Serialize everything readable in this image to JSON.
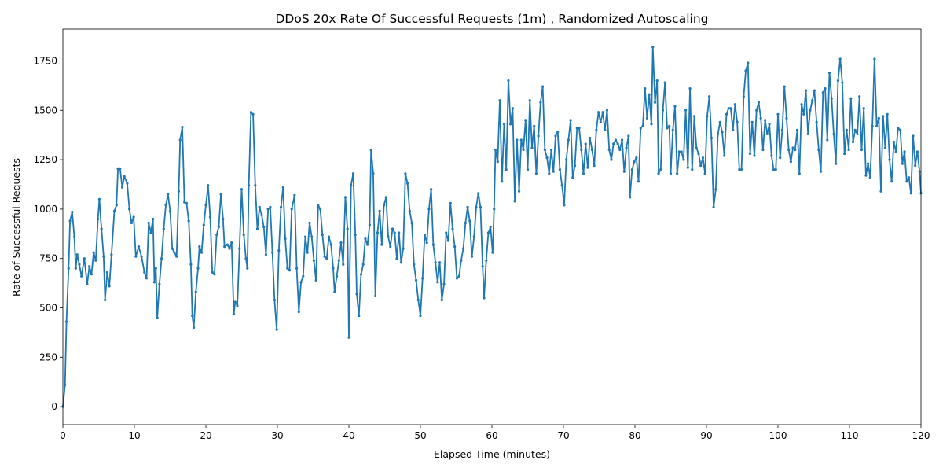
{
  "chart_data": {
    "type": "line",
    "title": "DDoS 20x Rate Of Successful Requests (1m) , Randomized Autoscaling",
    "x_label": "Elapsed Time (minutes)",
    "y_label": "Rate of Successful Requests",
    "xlim": [
      0,
      120
    ],
    "ylim": [
      -91,
      1911
    ],
    "xticks": [
      0,
      10,
      20,
      30,
      40,
      50,
      60,
      70,
      80,
      90,
      100,
      110,
      120
    ],
    "yticks": [
      0,
      250,
      500,
      750,
      1000,
      1250,
      1500,
      1750
    ],
    "grid": false,
    "x": [
      0,
      0.3,
      0.5,
      0.8,
      1.0,
      1.3,
      1.6,
      1.8,
      2.0,
      2.3,
      2.6,
      3.0,
      3.4,
      3.7,
      4.0,
      4.3,
      4.6,
      4.9,
      5.1,
      5.4,
      5.7,
      5.9,
      6.2,
      6.5,
      6.8,
      7.2,
      7.5,
      7.7,
      8.0,
      8.3,
      8.6,
      9.0,
      9.3,
      9.6,
      9.9,
      10.2,
      10.6,
      11.0,
      11.4,
      11.7,
      12.0,
      12.3,
      12.6,
      12.8,
      13.0,
      13.2,
      13.5,
      13.8,
      14.1,
      14.4,
      14.7,
      15.0,
      15.3,
      15.6,
      15.9,
      16.2,
      16.4,
      16.7,
      17.0,
      17.3,
      17.6,
      17.9,
      18.1,
      18.3,
      18.6,
      18.9,
      19.1,
      19.4,
      19.7,
      20.0,
      20.3,
      20.6,
      20.9,
      21.2,
      21.5,
      21.8,
      22.1,
      22.4,
      22.6,
      23.0,
      23.3,
      23.6,
      23.9,
      24.1,
      24.4,
      24.7,
      25.0,
      25.3,
      25.6,
      25.8,
      26.0,
      26.3,
      26.6,
      26.9,
      27.2,
      27.5,
      27.8,
      28.1,
      28.4,
      28.7,
      29.0,
      29.3,
      29.6,
      29.9,
      30.2,
      30.5,
      30.8,
      31.1,
      31.4,
      31.7,
      32.0,
      32.4,
      32.7,
      33.0,
      33.3,
      33.6,
      33.9,
      34.2,
      34.5,
      34.8,
      35.1,
      35.4,
      35.7,
      36.0,
      36.3,
      36.6,
      36.9,
      37.2,
      37.5,
      37.8,
      38.0,
      38.3,
      38.6,
      38.9,
      39.2,
      39.5,
      39.8,
      40.0,
      40.3,
      40.6,
      40.9,
      41.1,
      41.4,
      41.7,
      42.0,
      42.3,
      42.6,
      42.9,
      43.1,
      43.4,
      43.7,
      44.0,
      44.3,
      44.6,
      44.9,
      45.2,
      45.5,
      45.8,
      46.1,
      46.4,
      46.7,
      47.0,
      47.3,
      47.6,
      47.9,
      48.2,
      48.5,
      48.8,
      49.1,
      49.4,
      49.7,
      50.0,
      50.3,
      50.6,
      50.9,
      51.2,
      51.5,
      51.8,
      52.1,
      52.4,
      52.7,
      53.0,
      53.3,
      53.6,
      53.9,
      54.2,
      54.5,
      54.8,
      55.1,
      55.4,
      55.7,
      56.0,
      56.3,
      56.6,
      56.9,
      57.2,
      57.5,
      57.8,
      58.1,
      58.4,
      58.7,
      58.9,
      59.2,
      59.5,
      59.8,
      60.1,
      60.3,
      60.5,
      60.8,
      61.1,
      61.4,
      61.7,
      62.0,
      62.3,
      62.6,
      62.9,
      63.2,
      63.5,
      63.8,
      64.1,
      64.4,
      64.7,
      65.0,
      65.3,
      65.6,
      65.9,
      66.2,
      66.5,
      66.8,
      67.1,
      67.4,
      67.7,
      68.0,
      68.3,
      68.6,
      68.9,
      69.2,
      69.5,
      69.8,
      70.1,
      70.4,
      70.7,
      71.0,
      71.3,
      71.6,
      71.9,
      72.2,
      72.5,
      72.8,
      73.1,
      73.4,
      73.7,
      74.0,
      74.3,
      74.6,
      74.9,
      75.2,
      75.5,
      75.8,
      76.1,
      76.4,
      76.7,
      77.0,
      77.3,
      77.6,
      77.9,
      78.2,
      78.5,
      78.8,
      79.1,
      79.3,
      79.6,
      79.9,
      80.2,
      80.5,
      80.8,
      81.1,
      81.4,
      81.7,
      82.0,
      82.3,
      82.5,
      82.8,
      83.1,
      83.3,
      83.6,
      83.9,
      84.2,
      84.5,
      84.8,
      85.0,
      85.3,
      85.6,
      85.9,
      86.2,
      86.5,
      86.8,
      87.1,
      87.4,
      87.7,
      88.0,
      88.3,
      88.6,
      88.9,
      89.2,
      89.5,
      89.8,
      90.1,
      90.4,
      90.7,
      91.0,
      91.3,
      91.6,
      91.9,
      92.2,
      92.5,
      92.8,
      93.1,
      93.4,
      93.7,
      94.0,
      94.3,
      94.6,
      94.9,
      95.2,
      95.5,
      95.8,
      96.1,
      96.4,
      96.7,
      97.0,
      97.3,
      97.6,
      97.9,
      98.2,
      98.5,
      98.8,
      99.1,
      99.4,
      99.7,
      100.0,
      100.3,
      100.6,
      100.9,
      101.2,
      101.5,
      101.8,
      102.1,
      102.4,
      102.7,
      103.0,
      103.3,
      103.6,
      103.9,
      104.2,
      104.5,
      104.8,
      105.1,
      105.4,
      105.7,
      106.0,
      106.3,
      106.6,
      106.9,
      107.2,
      107.5,
      107.8,
      108.1,
      108.4,
      108.7,
      109.0,
      109.3,
      109.6,
      109.9,
      110.2,
      110.5,
      110.8,
      111.1,
      111.4,
      111.7,
      112.0,
      112.3,
      112.6,
      112.9,
      113.2,
      113.5,
      113.8,
      114.1,
      114.4,
      114.7,
      115.0,
      115.3,
      115.6,
      115.9,
      116.2,
      116.5,
      116.8,
      117.1,
      117.4,
      117.7,
      118.0,
      118.3,
      118.6,
      118.9,
      119.2,
      119.5,
      119.8,
      120
    ],
    "series": [
      {
        "color": "#1f77b4",
        "values": [
          0,
          110,
          430,
          700,
          940,
          985,
          860,
          700,
          770,
          720,
          660,
          750,
          620,
          710,
          670,
          780,
          740,
          950,
          1050,
          900,
          760,
          540,
          680,
          610,
          770,
          990,
          1020,
          1205,
          1205,
          1110,
          1165,
          1130,
          1000,
          930,
          960,
          760,
          810,
          760,
          680,
          650,
          930,
          880,
          950,
          630,
          700,
          450,
          620,
          750,
          900,
          1020,
          1075,
          990,
          800,
          780,
          760,
          1090,
          1350,
          1415,
          1035,
          1030,
          940,
          720,
          460,
          400,
          580,
          700,
          810,
          780,
          920,
          1020,
          1120,
          960,
          680,
          670,
          870,
          910,
          1075,
          950,
          810,
          820,
          800,
          830,
          470,
          530,
          510,
          800,
          1100,
          870,
          750,
          700,
          1120,
          1490,
          1480,
          1120,
          900,
          1010,
          970,
          910,
          770,
          1000,
          1010,
          780,
          540,
          390,
          790,
          1010,
          1110,
          850,
          700,
          690,
          1000,
          1070,
          700,
          480,
          630,
          660,
          860,
          780,
          930,
          860,
          740,
          640,
          1020,
          1000,
          870,
          760,
          750,
          860,
          820,
          700,
          580,
          660,
          740,
          830,
          720,
          1060,
          900,
          350,
          1120,
          1180,
          870,
          570,
          460,
          670,
          720,
          850,
          820,
          920,
          1300,
          1180,
          560,
          880,
          990,
          820,
          1020,
          1060,
          860,
          810,
          900,
          880,
          750,
          880,
          730,
          800,
          1180,
          1130,
          990,
          930,
          720,
          640,
          540,
          460,
          650,
          870,
          830,
          1000,
          1100,
          820,
          730,
          630,
          730,
          540,
          620,
          880,
          840,
          1030,
          900,
          810,
          650,
          660,
          740,
          800,
          930,
          1010,
          940,
          760,
          860,
          1010,
          1080,
          1010,
          710,
          550,
          740,
          880,
          910,
          780,
          1000,
          1300,
          1240,
          1550,
          1140,
          1430,
          1200,
          1650,
          1430,
          1510,
          1040,
          1350,
          1090,
          1350,
          1300,
          1450,
          1200,
          1550,
          1310,
          1420,
          1180,
          1370,
          1540,
          1620,
          1300,
          1260,
          1180,
          1300,
          1190,
          1370,
          1390,
          1200,
          1120,
          1020,
          1250,
          1350,
          1450,
          1160,
          1220,
          1410,
          1410,
          1300,
          1180,
          1330,
          1210,
          1360,
          1300,
          1220,
          1400,
          1490,
          1440,
          1490,
          1400,
          1500,
          1300,
          1250,
          1330,
          1350,
          1330,
          1300,
          1350,
          1190,
          1310,
          1370,
          1060,
          1200,
          1240,
          1260,
          1140,
          1410,
          1420,
          1610,
          1460,
          1580,
          1430,
          1820,
          1540,
          1650,
          1180,
          1200,
          1500,
          1640,
          1410,
          1420,
          1180,
          1400,
          1520,
          1180,
          1290,
          1290,
          1250,
          1500,
          1210,
          1610,
          1200,
          1470,
          1310,
          1280,
          1220,
          1260,
          1180,
          1470,
          1570,
          1360,
          1010,
          1100,
          1380,
          1440,
          1390,
          1270,
          1480,
          1510,
          1510,
          1400,
          1530,
          1440,
          1200,
          1200,
          1570,
          1700,
          1740,
          1280,
          1440,
          1270,
          1500,
          1540,
          1460,
          1300,
          1450,
          1380,
          1430,
          1270,
          1200,
          1200,
          1480,
          1260,
          1400,
          1620,
          1460,
          1300,
          1240,
          1310,
          1300,
          1400,
          1180,
          1530,
          1480,
          1600,
          1380,
          1500,
          1550,
          1600,
          1440,
          1300,
          1190,
          1590,
          1610,
          1350,
          1690,
          1560,
          1380,
          1230,
          1650,
          1760,
          1640,
          1280,
          1400,
          1300,
          1560,
          1340,
          1400,
          1380,
          1570,
          1300,
          1510,
          1170,
          1230,
          1160,
          1420,
          1760,
          1420,
          1460,
          1090,
          1470,
          1310,
          1480,
          1250,
          1140,
          1340,
          1290,
          1410,
          1400,
          1230,
          1290,
          1140,
          1160,
          1080,
          1370,
          1220,
          1290,
          1190,
          1080
        ]
      }
    ]
  }
}
